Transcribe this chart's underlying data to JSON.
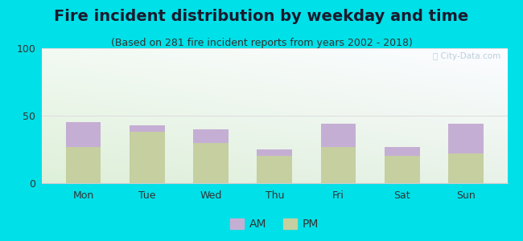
{
  "title": "Fire incident distribution by weekday and time",
  "subtitle": "(Based on 281 fire incident reports from years 2002 - 2018)",
  "categories": [
    "Mon",
    "Tue",
    "Wed",
    "Thu",
    "Fri",
    "Sat",
    "Sun"
  ],
  "pm_values": [
    27,
    38,
    30,
    20,
    27,
    20,
    22
  ],
  "am_values": [
    18,
    5,
    10,
    5,
    17,
    7,
    22
  ],
  "am_color": "#c5aed4",
  "pm_color": "#c5cfa0",
  "ylim": [
    0,
    100
  ],
  "yticks": [
    0,
    50,
    100
  ],
  "outer_bg": "#00e0e8",
  "title_color": "#1a1a2e",
  "subtitle_color": "#333333",
  "title_fontsize": 14,
  "subtitle_fontsize": 9,
  "tick_fontsize": 9,
  "legend_fontsize": 10,
  "bar_width": 0.55,
  "watermark": "City-Data.com"
}
